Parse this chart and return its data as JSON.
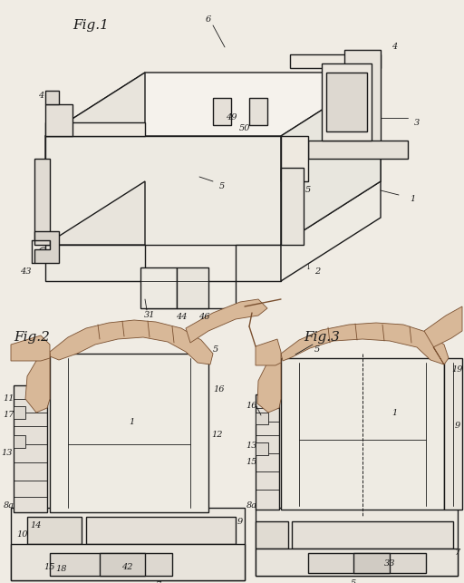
{
  "bg_color": "#f0ece4",
  "line_color": "#1a1a1a",
  "lw_main": 1.0,
  "lw_thin": 0.6,
  "lw_thick": 1.4,
  "fig1_label": "Fig.1",
  "fig2_label": "Fig.2",
  "fig3_label": "Fig.3"
}
